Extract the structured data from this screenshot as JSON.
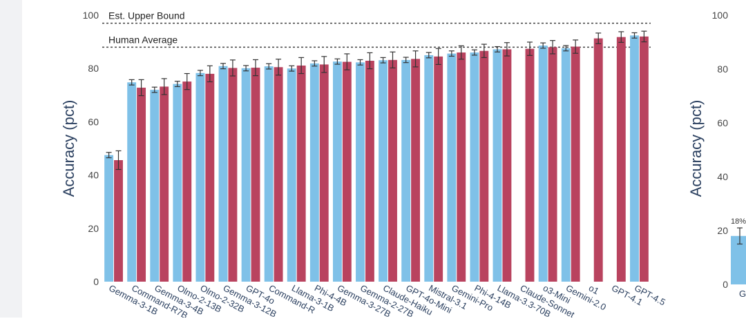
{
  "chart_data": [
    {
      "type": "bar",
      "ylabel": "Accuracy (pct)",
      "yticks": [
        0,
        20,
        40,
        60,
        80,
        100
      ],
      "ylim": [
        0,
        100
      ],
      "grid": false,
      "reference_lines": [
        {
          "label": "Est. Upper Bound",
          "value": 97
        },
        {
          "label": "Human Average",
          "value": 88
        }
      ],
      "colors": {
        "series_a": "#7fc1e8",
        "series_b": "#b9435f",
        "error_bar": "#333333",
        "reference_line": "#444444"
      },
      "categories": [
        "Gemma-3-1B",
        "Command-R7B",
        "Gemma-3-4B",
        "Olmo-2-13B",
        "Olmo-2-32B",
        "Gemma-3-12B",
        "GPT-4o",
        "Command-R",
        "Llama-3-1B",
        "Phi-4-4B",
        "Gemma-3-27B",
        "Gemma-2-27B",
        "Claude-Haiku",
        "GPT-4o-Mini",
        "Mistral-3.1",
        "Gemini-Pro",
        "Phi-4-14B",
        "Llama-3.3-70B",
        "Claude-Sonnet",
        "o3-Mini",
        "Gemini-2.0",
        "o1",
        "GPT-4.1",
        "GPT-4.5"
      ],
      "series": [
        {
          "values": [
            47.5,
            74.8,
            72.0,
            74.2,
            78.3,
            80.9,
            80.1,
            80.8,
            80.0,
            81.9,
            82.6,
            82.3,
            83.1,
            83.2,
            85.0,
            85.6,
            86.0,
            87.2,
            null,
            88.6,
            87.6,
            null,
            null,
            92.4
          ],
          "errors": [
            1,
            1,
            1,
            1,
            1,
            1,
            1,
            1,
            1,
            1,
            1,
            1,
            1,
            1,
            1,
            1,
            1,
            1,
            null,
            1,
            1,
            null,
            null,
            1
          ]
        },
        {
          "values": [
            45.6,
            72.8,
            73.2,
            75.1,
            78.0,
            80.2,
            80.3,
            80.5,
            81.1,
            81.5,
            82.5,
            82.9,
            83.2,
            83.6,
            84.5,
            86.0,
            86.6,
            87.2,
            87.4,
            88.0,
            88.2,
            91.3,
            91.8,
            92.0
          ],
          "errors": [
            3.5,
            3,
            3,
            3,
            3,
            3,
            3,
            3,
            3,
            3,
            3,
            3,
            3,
            3,
            3,
            2.5,
            2.5,
            2.5,
            2.5,
            2.5,
            2.5,
            2,
            2,
            2
          ]
        }
      ]
    },
    {
      "type": "bar",
      "ylabel": "Accuracy (pct)",
      "yticks": [
        0,
        20,
        40,
        60,
        80,
        100
      ],
      "ylim": [
        0,
        100
      ],
      "categories": [
        "G"
      ],
      "data_labels": [
        "18%"
      ],
      "series": [
        {
          "values": [
            18
          ],
          "errors": [
            3
          ]
        }
      ]
    }
  ]
}
